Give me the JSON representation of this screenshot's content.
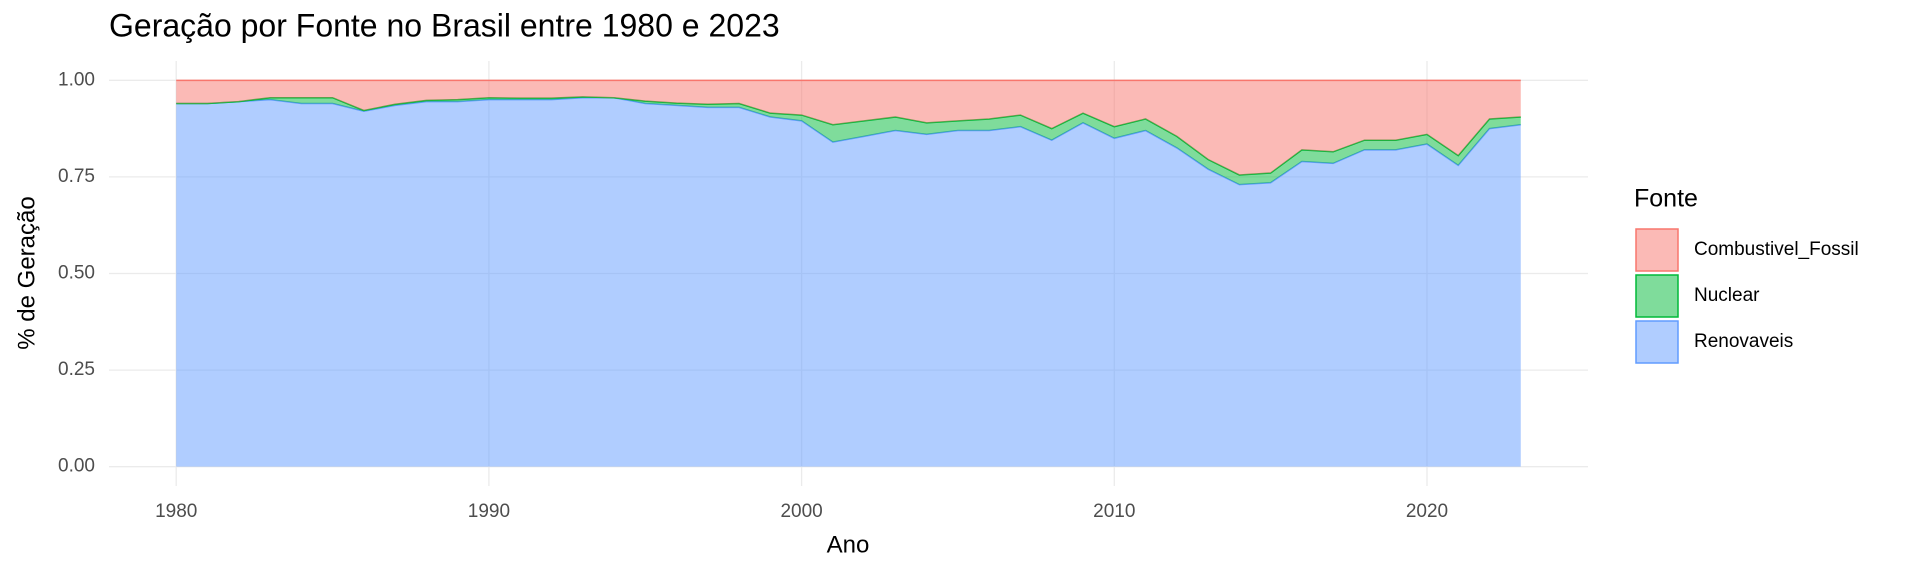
{
  "chart_data": {
    "type": "area",
    "stacked": true,
    "title": "Geração por Fonte no Brasil entre 1980 e 2023",
    "xlabel": "Ano",
    "ylabel": "% de Geração",
    "legend_title": "Fonte",
    "legend": "right",
    "grid": true,
    "x": [
      1980,
      1981,
      1982,
      1983,
      1984,
      1985,
      1986,
      1987,
      1988,
      1989,
      1990,
      1991,
      1992,
      1993,
      1994,
      1995,
      1996,
      1997,
      1998,
      1999,
      2000,
      2001,
      2002,
      2003,
      2004,
      2005,
      2006,
      2007,
      2008,
      2009,
      2010,
      2011,
      2012,
      2013,
      2014,
      2015,
      2016,
      2017,
      2018,
      2019,
      2020,
      2021,
      2022,
      2023
    ],
    "series": [
      {
        "name": "Combustivel_Fossil",
        "color": "#F8766D",
        "values": [
          0.06,
          0.06,
          0.055,
          0.045,
          0.045,
          0.045,
          0.078,
          0.062,
          0.052,
          0.05,
          0.045,
          0.046,
          0.046,
          0.043,
          0.045,
          0.054,
          0.059,
          0.062,
          0.06,
          0.085,
          0.09,
          0.115,
          0.105,
          0.095,
          0.11,
          0.105,
          0.1,
          0.09,
          0.125,
          0.085,
          0.12,
          0.1,
          0.145,
          0.205,
          0.245,
          0.24,
          0.18,
          0.185,
          0.155,
          0.155,
          0.14,
          0.195,
          0.1,
          0.095
        ]
      },
      {
        "name": "Nuclear",
        "color": "#00BA38",
        "values": [
          0,
          0,
          0,
          0.005,
          0.015,
          0.015,
          0.002,
          0.003,
          0.003,
          0.005,
          0.005,
          0.004,
          0.004,
          0.002,
          0,
          0.006,
          0.006,
          0.008,
          0.01,
          0.01,
          0.015,
          0.045,
          0.04,
          0.035,
          0.03,
          0.025,
          0.03,
          0.03,
          0.03,
          0.025,
          0.03,
          0.03,
          0.03,
          0.025,
          0.025,
          0.025,
          0.03,
          0.03,
          0.025,
          0.025,
          0.025,
          0.025,
          0.025,
          0.02
        ]
      },
      {
        "name": "Renovaveis",
        "color": "#619CFF",
        "values": [
          0.94,
          0.94,
          0.945,
          0.95,
          0.94,
          0.94,
          0.92,
          0.935,
          0.945,
          0.945,
          0.95,
          0.95,
          0.95,
          0.955,
          0.955,
          0.94,
          0.935,
          0.93,
          0.93,
          0.905,
          0.895,
          0.84,
          0.855,
          0.87,
          0.86,
          0.87,
          0.87,
          0.88,
          0.845,
          0.89,
          0.85,
          0.87,
          0.825,
          0.77,
          0.73,
          0.735,
          0.79,
          0.785,
          0.82,
          0.82,
          0.835,
          0.78,
          0.875,
          0.885
        ]
      }
    ],
    "xlim": [
      1977.85,
      2025.15
    ],
    "xticks": [
      1980,
      1990,
      2000,
      2010,
      2020
    ],
    "ylim": [
      -0.05,
      1.05
    ],
    "yticks": [
      {
        "value": 0,
        "label": "0.00"
      },
      {
        "value": 0.25,
        "label": "0.25"
      },
      {
        "value": 0.5,
        "label": "0.50"
      },
      {
        "value": 0.75,
        "label": "0.75"
      },
      {
        "value": 1,
        "label": "1.00"
      }
    ]
  }
}
